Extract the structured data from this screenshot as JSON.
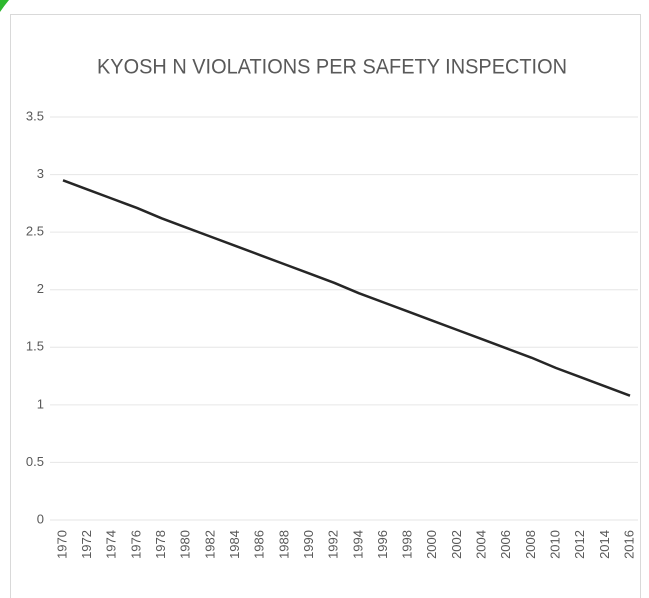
{
  "chart_data": {
    "type": "line",
    "title": "KYOSH N VIOLATIONS PER SAFETY INSPECTION",
    "categories": [
      "1970",
      "1972",
      "1974",
      "1976",
      "1978",
      "1980",
      "1982",
      "1984",
      "1986",
      "1988",
      "1990",
      "1992",
      "1994",
      "1996",
      "1998",
      "2000",
      "2002",
      "2004",
      "2006",
      "2008",
      "2010",
      "2012",
      "2014",
      "2016"
    ],
    "values": [
      2.95,
      2.87,
      2.79,
      2.71,
      2.62,
      2.54,
      2.46,
      2.38,
      2.3,
      2.22,
      2.14,
      2.06,
      1.97,
      1.89,
      1.81,
      1.73,
      1.65,
      1.57,
      1.49,
      1.41,
      1.32,
      1.24,
      1.16,
      1.08
    ],
    "color": "#262626",
    "ylim": [
      0,
      3.5
    ],
    "yticks": [
      0,
      0.5,
      1,
      1.5,
      2,
      2.5,
      3,
      3.5
    ],
    "grid": true
  }
}
